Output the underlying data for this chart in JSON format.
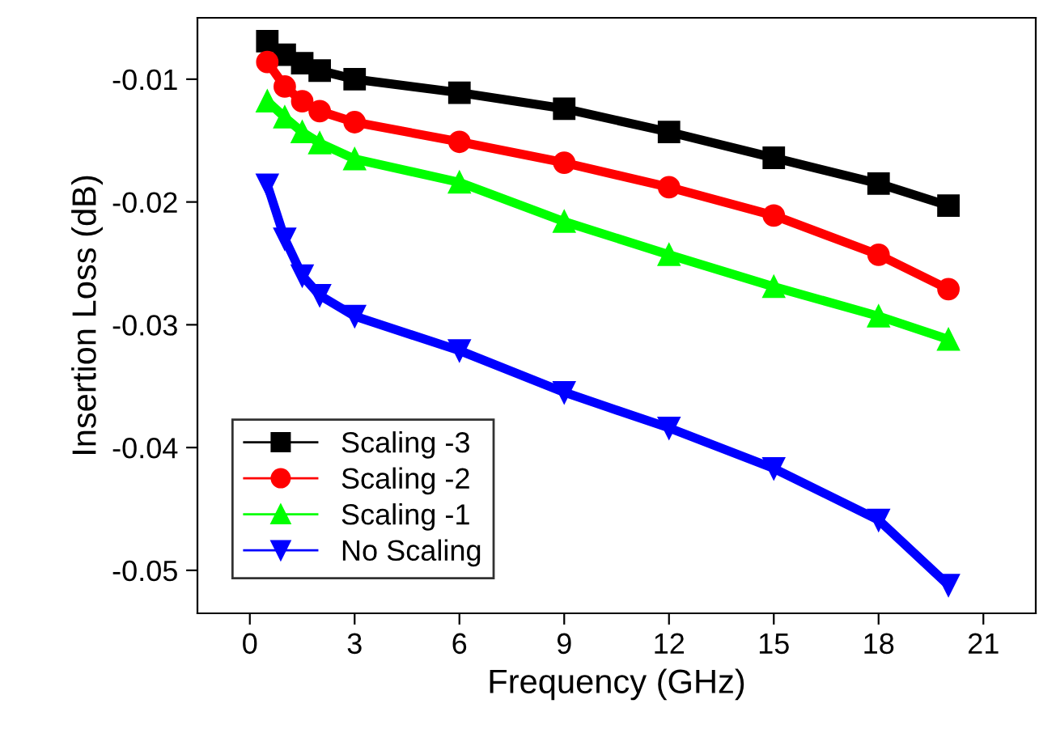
{
  "chart_data": {
    "type": "line",
    "xlabel": "Frequency (GHz)",
    "ylabel": "Insertion Loss (dB)",
    "xlim": [
      -1.5,
      22.5
    ],
    "xticks": [
      0,
      3,
      6,
      9,
      12,
      15,
      18,
      21
    ],
    "ylim": [
      -0.0535,
      -0.005
    ],
    "yticks": [
      -0.01,
      -0.02,
      -0.03,
      -0.04,
      -0.05
    ],
    "grid": false,
    "legend": "bottom left",
    "x": [
      0.5,
      1,
      1.5,
      2,
      3,
      6,
      9,
      12,
      15,
      18,
      20
    ],
    "series": [
      {
        "name": "Scaling -3",
        "color": "#000000",
        "marker": "square",
        "values": [
          -0.0069,
          -0.008,
          -0.0087,
          -0.0093,
          -0.01,
          -0.0111,
          -0.0124,
          -0.0143,
          -0.0164,
          -0.0185,
          -0.0203
        ]
      },
      {
        "name": "Scaling -2",
        "color": "#ff0000",
        "marker": "circle",
        "values": [
          -0.0086,
          -0.0106,
          -0.0118,
          -0.0126,
          -0.0135,
          -0.0151,
          -0.0168,
          -0.0188,
          -0.0211,
          -0.0243,
          -0.0271
        ]
      },
      {
        "name": "Scaling -1",
        "color": "#00ff00",
        "marker": "triangle",
        "values": [
          -0.0118,
          -0.0131,
          -0.0143,
          -0.0152,
          -0.0165,
          -0.0184,
          -0.0216,
          -0.0243,
          -0.0269,
          -0.0293,
          -0.0312
        ]
      },
      {
        "name": "No Scaling",
        "color": "#0000ff",
        "marker": "triangle_down",
        "values": [
          -0.0186,
          -0.023,
          -0.026,
          -0.0276,
          -0.0293,
          -0.0321,
          -0.0355,
          -0.0384,
          -0.0417,
          -0.0459,
          -0.0512
        ]
      }
    ]
  }
}
